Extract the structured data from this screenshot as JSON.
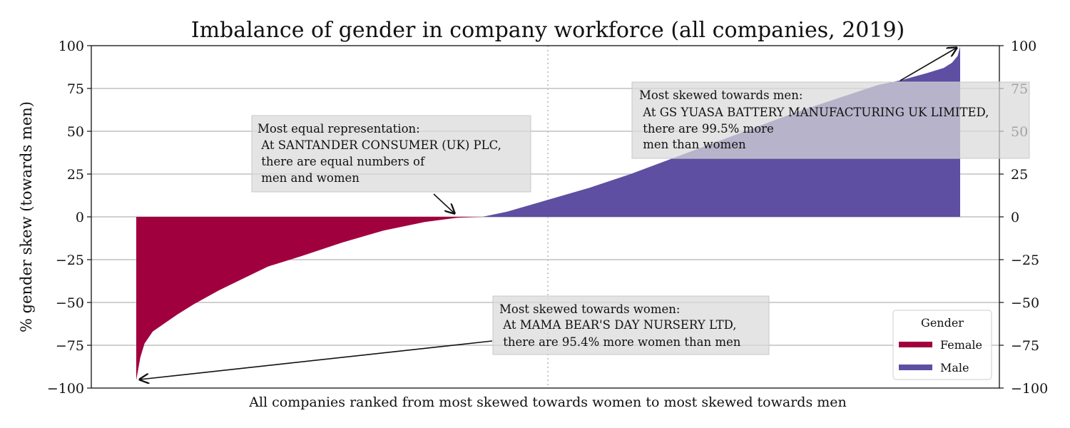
{
  "chart_data": {
    "type": "area",
    "title": "Imbalance of gender in company workforce (all companies, 2019)",
    "xlabel": "All companies ranked from most skewed towards women to most skewed towards men",
    "ylabel": "% gender skew (towards men)",
    "ylim": [
      -100,
      100
    ],
    "yticks": [
      "100",
      "75",
      "50",
      "25",
      "0",
      "−25",
      "−50",
      "−75",
      "−100"
    ],
    "yticks_values": [
      100,
      75,
      50,
      25,
      0,
      -25,
      -50,
      -75,
      -100
    ],
    "grid": "horizontal",
    "median_line": "dotted vertical at midpoint",
    "secondary_y_axis": true,
    "legend": {
      "title": "Gender",
      "position": "bottom-right",
      "entries": [
        {
          "label": "Female",
          "color": "#a1003f"
        },
        {
          "label": "Male",
          "color": "#5e4fa2"
        }
      ]
    },
    "curve": {
      "x_rank_fraction": [
        0,
        0.002,
        0.005,
        0.01,
        0.02,
        0.035,
        0.05,
        0.07,
        0.1,
        0.13,
        0.16,
        0.2,
        0.25,
        0.3,
        0.35,
        0.39,
        0.42,
        0.45,
        0.5,
        0.55,
        0.6,
        0.65,
        0.7,
        0.75,
        0.8,
        0.85,
        0.9,
        0.93,
        0.96,
        0.98,
        0.99,
        0.997,
        1
      ],
      "skew_percent": [
        -95.4,
        -90,
        -82,
        -74,
        -67,
        -62,
        -57,
        -51,
        -43,
        -36,
        -29,
        -23,
        -15,
        -8,
        -3,
        -0.5,
        0,
        3,
        10,
        17,
        25,
        34,
        43,
        52,
        61,
        69,
        77,
        80,
        84,
        87,
        90,
        94,
        99.5
      ]
    },
    "annotations": [
      {
        "id": "men",
        "lines": [
          "Most skewed towards men:",
          " At GS YUASA BATTERY MANUFACTURING UK LIMITED,",
          " there are 99.5% more",
          " men than women"
        ]
      },
      {
        "id": "equal",
        "lines": [
          "Most equal representation:",
          " At SANTANDER CONSUMER (UK) PLC,",
          " there are equal numbers of",
          " men and women"
        ]
      },
      {
        "id": "women",
        "lines": [
          "Most skewed towards women:",
          " At MAMA BEAR'S DAY NURSERY LTD,",
          " there are 95.4% more women than men"
        ]
      }
    ]
  }
}
